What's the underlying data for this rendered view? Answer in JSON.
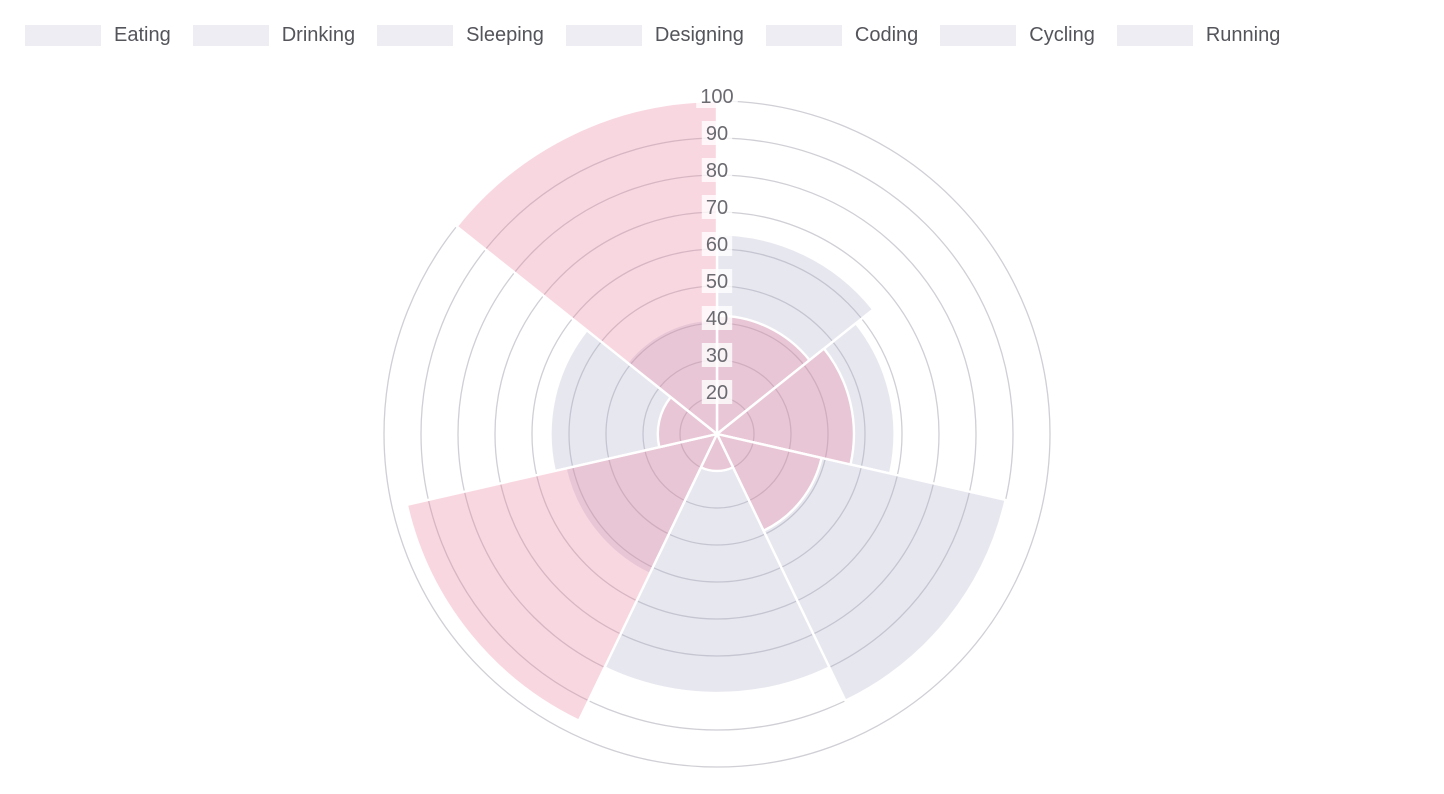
{
  "chart_data": {
    "type": "pie",
    "variant": "polar-area",
    "title": "",
    "categories": [
      "Eating",
      "Drinking",
      "Sleeping",
      "Designing",
      "Coding",
      "Cycling",
      "Running"
    ],
    "series": [
      {
        "name": "series-1-lavender",
        "color": "rgba(177,175,203,0.30)",
        "values": [
          64,
          58,
          90,
          80,
          52,
          55,
          41
        ]
      },
      {
        "name": "series-2-pink",
        "color": "rgba(236,122,152,0.30)",
        "values": [
          42,
          47,
          39,
          20,
          96,
          26,
          100
        ]
      }
    ],
    "axis": {
      "min": 10,
      "max": 100,
      "step": 10,
      "tick_labels": [
        "20",
        "30",
        "40",
        "50",
        "60",
        "70",
        "80",
        "90",
        "100"
      ]
    },
    "start_angle_deg": 0,
    "direction": "clockwise",
    "grid": true,
    "legend_position": "top",
    "colors": {
      "grid_line": "#cfcfd5",
      "sector_border": "#ffffff",
      "tick_text": "#6a6a70",
      "tick_backdrop": "rgba(255,255,255,0.78)",
      "legend_swatch": "#eeedf3",
      "legend_text": "#54555b"
    }
  },
  "legend": {
    "items": [
      "Eating",
      "Drinking",
      "Sleeping",
      "Designing",
      "Coding",
      "Cycling",
      "Running"
    ]
  }
}
